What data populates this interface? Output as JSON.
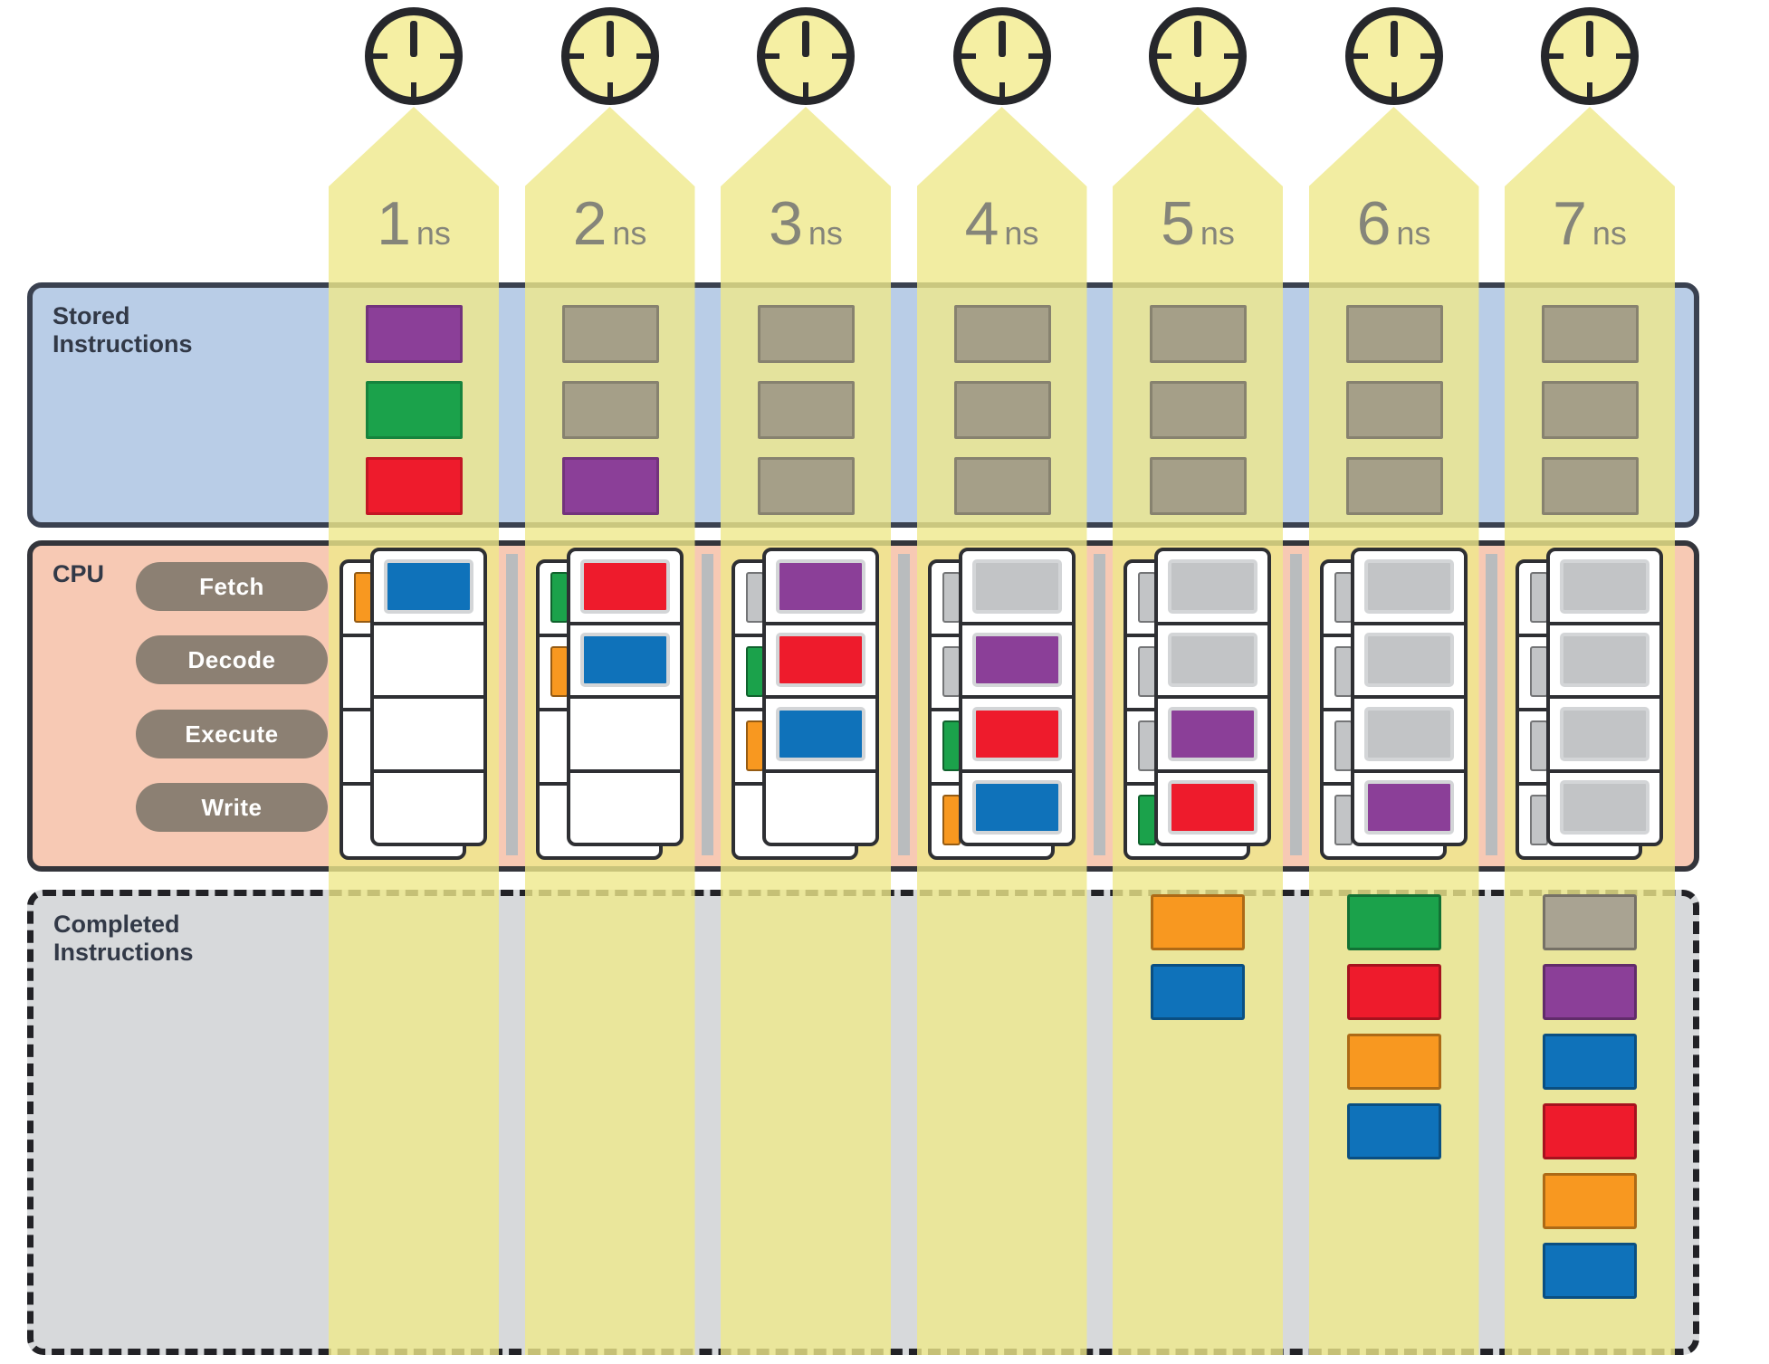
{
  "sections": {
    "stored": {
      "label": "Stored Instructions"
    },
    "cpu": {
      "label": "CPU",
      "stages": [
        "Fetch",
        "Decode",
        "Execute",
        "Write"
      ]
    },
    "completed": {
      "label": "Completed Instructions"
    }
  },
  "timeline": {
    "unit": "ns",
    "ticks": [
      "1",
      "2",
      "3",
      "4",
      "5",
      "6",
      "7"
    ]
  },
  "palette": {
    "purple": "#8b3f98",
    "green": "#1ba24b",
    "red": "#ee1b2c",
    "blue": "#0f72ba",
    "orange": "#f89820",
    "storedGray": "#a59f88",
    "cpuGray": "#c2c4c6",
    "completedGray": "#a9a392",
    "empty": "#ffffff",
    "bandYellow": "rgba(239,232,139,0.8)",
    "storedBg": "#b9cde7",
    "cpuBg": "#f7c9b4",
    "completedBg": "#d7d9db"
  },
  "stored_columns": [
    [
      "purple",
      "green",
      "red"
    ],
    [
      "storedGray",
      "storedGray",
      "purple"
    ],
    [
      "storedGray",
      "storedGray",
      "storedGray"
    ],
    [
      "storedGray",
      "storedGray",
      "storedGray"
    ],
    [
      "storedGray",
      "storedGray",
      "storedGray"
    ],
    [
      "storedGray",
      "storedGray",
      "storedGray"
    ],
    [
      "storedGray",
      "storedGray",
      "storedGray"
    ]
  ],
  "cpu_columns": [
    {
      "incoming": [
        "orange",
        "empty",
        "empty",
        "empty"
      ],
      "stages": [
        "blue",
        "empty",
        "empty",
        "empty"
      ]
    },
    {
      "incoming": [
        "green",
        "orange",
        "empty",
        "empty"
      ],
      "stages": [
        "red",
        "blue",
        "empty",
        "empty"
      ]
    },
    {
      "incoming": [
        "cpuGray",
        "green",
        "orange",
        "empty"
      ],
      "stages": [
        "purple",
        "red",
        "blue",
        "empty"
      ]
    },
    {
      "incoming": [
        "cpuGray",
        "cpuGray",
        "green",
        "orange"
      ],
      "stages": [
        "cpuGray",
        "purple",
        "red",
        "blue"
      ]
    },
    {
      "incoming": [
        "cpuGray",
        "cpuGray",
        "cpuGray",
        "green"
      ],
      "stages": [
        "cpuGray",
        "cpuGray",
        "purple",
        "red"
      ]
    },
    {
      "incoming": [
        "cpuGray",
        "cpuGray",
        "cpuGray",
        "cpuGray"
      ],
      "stages": [
        "cpuGray",
        "cpuGray",
        "cpuGray",
        "purple"
      ]
    },
    {
      "incoming": [
        "cpuGray",
        "cpuGray",
        "cpuGray",
        "cpuGray"
      ],
      "stages": [
        "cpuGray",
        "cpuGray",
        "cpuGray",
        "cpuGray"
      ]
    }
  ],
  "completed_columns": [
    [],
    [],
    [],
    [],
    [
      "orange",
      "blue"
    ],
    [
      "green",
      "red",
      "orange",
      "blue"
    ],
    [
      "completedGray",
      "purple",
      "blue",
      "red",
      "orange",
      "blue"
    ]
  ]
}
